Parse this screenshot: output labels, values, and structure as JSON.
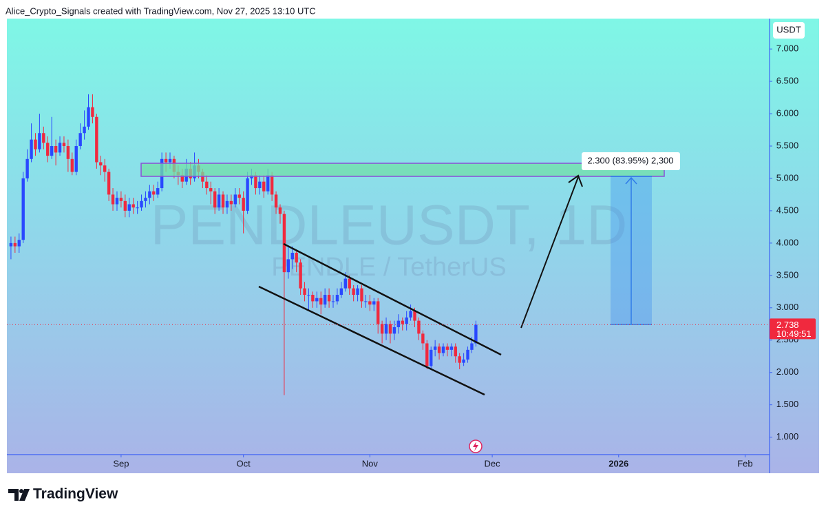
{
  "chart_data": {
    "type": "candlestick",
    "header": "Alice_Crypto_Signals created with TradingView.com, Nov 27, 2025 13:10 UTC",
    "watermark_symbol": "PENDLEUSDT, 1D",
    "watermark_description": "PENDLE / TetherUS",
    "currency": "USDT",
    "last_price": 2.738,
    "countdown": "10:49:51",
    "measure_label": "2.300 (83.95%) 2,300",
    "brand": "TradingView",
    "up_color": "#2948ff",
    "down_color": "#f0293e",
    "xlim": [
      216,
      403
    ],
    "ylim": [
      0.73,
      7.47
    ],
    "xticks": [
      {
        "value": 244,
        "label": "Sep"
      },
      {
        "value": 274,
        "label": "Oct"
      },
      {
        "value": 305,
        "label": "Nov"
      },
      {
        "value": 335,
        "label": "Dec"
      },
      {
        "value": 366,
        "label": "2026",
        "bold": true
      },
      {
        "value": 397,
        "label": "Feb"
      }
    ],
    "yticks": [
      {
        "value": 1,
        "label": "1.000"
      },
      {
        "value": 1.5,
        "label": "1.500"
      },
      {
        "value": 2,
        "label": "2.000"
      },
      {
        "value": 2.5,
        "label": "2.500"
      },
      {
        "value": 3,
        "label": "3.000"
      },
      {
        "value": 3.5,
        "label": "3.500"
      },
      {
        "value": 4,
        "label": "4.000"
      },
      {
        "value": 4.5,
        "label": "4.500"
      },
      {
        "value": 5,
        "label": "5.000"
      },
      {
        "value": 5.5,
        "label": "5.500"
      },
      {
        "value": 6,
        "label": "6.000"
      },
      {
        "value": 6.5,
        "label": "6.500"
      },
      {
        "value": 7,
        "label": "7.000"
      }
    ],
    "x": [
      217,
      218,
      219,
      220,
      221,
      222,
      223,
      224,
      225,
      226,
      227,
      228,
      229,
      230,
      231,
      232,
      233,
      234,
      235,
      236,
      237,
      238,
      239,
      240,
      241,
      242,
      243,
      244,
      245,
      246,
      247,
      248,
      249,
      250,
      251,
      252,
      253,
      254,
      255,
      256,
      257,
      258,
      259,
      260,
      261,
      262,
      263,
      264,
      265,
      266,
      267,
      268,
      269,
      270,
      271,
      272,
      273,
      274,
      275,
      276,
      277,
      278,
      279,
      280,
      281,
      282,
      283,
      284,
      285,
      286,
      287,
      288,
      289,
      290,
      291,
      292,
      293,
      294,
      295,
      296,
      297,
      298,
      299,
      300,
      301,
      302,
      303,
      304,
      305,
      306,
      307,
      308,
      309,
      310,
      311,
      312,
      313,
      314,
      315,
      316,
      317,
      318,
      319,
      320,
      321,
      322,
      323,
      324,
      325,
      326,
      327,
      328,
      329,
      330,
      331
    ],
    "open": [
      3.95,
      4.0,
      3.95,
      4.05,
      5.0,
      5.3,
      5.6,
      5.45,
      5.7,
      5.55,
      5.35,
      5.5,
      5.4,
      5.55,
      5.5,
      5.3,
      5.1,
      5.5,
      5.7,
      5.8,
      6.1,
      5.95,
      5.25,
      5.2,
      5.1,
      4.75,
      4.6,
      4.7,
      4.65,
      4.5,
      4.6,
      4.55,
      4.55,
      4.65,
      4.7,
      4.8,
      4.75,
      4.85,
      5.3,
      5.25,
      5.3,
      5.1,
      5.05,
      4.95,
      5.15,
      5.0,
      5.2,
      5.1,
      4.95,
      4.85,
      4.8,
      4.55,
      4.75,
      4.55,
      4.65,
      4.6,
      4.75,
      4.7,
      4.5,
      5.0,
      5.05,
      4.85,
      4.95,
      4.8,
      5.05,
      4.75,
      4.55,
      4.45,
      3.55,
      3.75,
      3.85,
      3.7,
      3.3,
      3.2,
      3.2,
      3.1,
      3.15,
      3.05,
      3.2,
      3.1,
      3.1,
      3.2,
      3.3,
      3.45,
      3.3,
      3.2,
      3.3,
      3.1,
      3.1,
      3.05,
      3.1,
      2.75,
      2.6,
      2.75,
      2.6,
      2.7,
      2.8,
      2.75,
      2.85,
      2.95,
      2.8,
      2.6,
      2.45,
      2.1,
      2.35,
      2.4,
      2.3,
      2.4,
      2.35,
      2.4,
      2.25,
      2.15,
      2.2,
      2.35,
      2.45
    ],
    "high": [
      4.1,
      4.1,
      4.15,
      5.1,
      5.45,
      5.85,
      5.7,
      6.0,
      5.8,
      5.65,
      5.95,
      5.6,
      5.65,
      5.65,
      5.6,
      5.4,
      5.6,
      5.85,
      6.05,
      6.3,
      6.3,
      6.0,
      5.35,
      5.3,
      5.15,
      4.85,
      4.8,
      4.8,
      4.75,
      4.7,
      4.7,
      4.65,
      4.75,
      4.8,
      4.9,
      4.9,
      4.95,
      5.4,
      5.4,
      5.4,
      5.35,
      5.2,
      5.15,
      5.3,
      5.25,
      5.4,
      5.3,
      5.15,
      5.05,
      4.95,
      4.85,
      4.85,
      4.8,
      4.75,
      4.75,
      4.85,
      4.85,
      4.8,
      5.1,
      5.15,
      5.1,
      5.05,
      5.05,
      5.15,
      5.1,
      4.8,
      4.6,
      4.5,
      3.95,
      3.95,
      3.9,
      3.75,
      3.4,
      3.3,
      3.25,
      3.25,
      3.25,
      3.3,
      3.3,
      3.2,
      3.3,
      3.4,
      3.55,
      3.5,
      3.35,
      3.35,
      3.35,
      3.2,
      3.2,
      3.15,
      3.15,
      2.8,
      2.85,
      2.8,
      2.8,
      2.9,
      2.85,
      2.95,
      3.05,
      3.0,
      2.85,
      2.65,
      2.5,
      2.4,
      2.5,
      2.45,
      2.45,
      2.45,
      2.45,
      2.45,
      2.3,
      2.3,
      2.4,
      2.55,
      2.8
    ],
    "low": [
      3.75,
      3.85,
      3.85,
      4.0,
      4.95,
      5.25,
      5.35,
      5.4,
      5.45,
      5.25,
      5.3,
      5.2,
      5.35,
      5.4,
      5.1,
      5.05,
      5.05,
      5.45,
      5.6,
      5.75,
      5.85,
      5.15,
      5.05,
      4.95,
      4.65,
      4.5,
      4.5,
      4.55,
      4.4,
      4.4,
      4.45,
      4.45,
      4.5,
      4.55,
      4.6,
      4.65,
      4.7,
      4.8,
      5.1,
      5.15,
      5.0,
      4.9,
      4.85,
      4.9,
      4.9,
      4.95,
      5.0,
      4.85,
      4.75,
      4.6,
      4.45,
      4.5,
      4.45,
      4.45,
      4.5,
      4.55,
      4.6,
      4.15,
      4.45,
      4.9,
      4.75,
      4.75,
      4.7,
      4.75,
      4.65,
      4.45,
      4.3,
      1.65,
      3.45,
      3.6,
      3.55,
      3.2,
      3.1,
      2.95,
      3.0,
      3.0,
      2.9,
      3.0,
      3.0,
      3.0,
      3.05,
      3.15,
      3.25,
      3.2,
      3.1,
      3.1,
      3.0,
      3.0,
      2.95,
      2.95,
      2.6,
      2.45,
      2.5,
      2.45,
      2.5,
      2.6,
      2.65,
      2.65,
      2.8,
      2.7,
      2.5,
      2.35,
      2.05,
      2.05,
      2.25,
      2.2,
      2.25,
      2.25,
      2.25,
      2.15,
      2.05,
      2.1,
      2.15,
      2.3,
      2.4
    ],
    "close": [
      4.0,
      3.95,
      4.05,
      5.0,
      5.3,
      5.6,
      5.45,
      5.7,
      5.55,
      5.35,
      5.5,
      5.4,
      5.55,
      5.5,
      5.3,
      5.1,
      5.5,
      5.7,
      5.8,
      6.1,
      5.95,
      5.25,
      5.2,
      5.1,
      4.75,
      4.6,
      4.7,
      4.65,
      4.5,
      4.6,
      4.55,
      4.55,
      4.65,
      4.7,
      4.8,
      4.75,
      4.85,
      5.3,
      5.25,
      5.3,
      5.1,
      5.05,
      4.95,
      5.15,
      5.0,
      5.2,
      5.1,
      4.95,
      4.85,
      4.8,
      4.55,
      4.75,
      4.55,
      4.65,
      4.6,
      4.75,
      4.7,
      4.5,
      5.0,
      5.05,
      4.85,
      4.95,
      4.8,
      5.05,
      4.75,
      4.55,
      4.45,
      3.55,
      3.75,
      3.85,
      3.7,
      3.3,
      3.2,
      3.2,
      3.1,
      3.15,
      3.05,
      3.2,
      3.1,
      3.1,
      3.2,
      3.3,
      3.45,
      3.3,
      3.2,
      3.3,
      3.1,
      3.1,
      3.05,
      3.1,
      2.75,
      2.6,
      2.75,
      2.6,
      2.7,
      2.8,
      2.75,
      2.85,
      2.95,
      2.8,
      2.6,
      2.45,
      2.1,
      2.35,
      2.4,
      2.3,
      2.4,
      2.35,
      2.4,
      2.25,
      2.15,
      2.2,
      2.35,
      2.45,
      2.738
    ]
  }
}
